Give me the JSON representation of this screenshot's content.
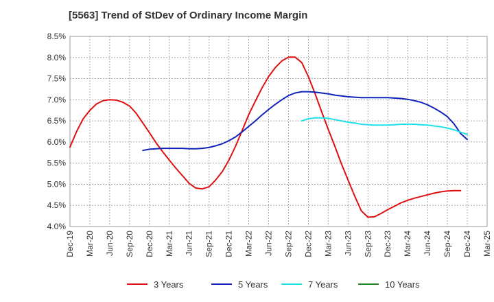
{
  "chart_data": {
    "type": "line",
    "title": "[5563]  Trend of StDev of Ordinary Income Margin",
    "xlabel": "",
    "ylabel": "",
    "x_ticks": [
      "Dec-19",
      "Mar-20",
      "Jun-20",
      "Sep-20",
      "Dec-20",
      "Mar-21",
      "Jun-21",
      "Sep-21",
      "Dec-21",
      "Mar-22",
      "Jun-22",
      "Sep-22",
      "Dec-22",
      "Mar-23",
      "Jun-23",
      "Sep-23",
      "Dec-23",
      "Mar-24",
      "Jun-24",
      "Sep-24",
      "Dec-24",
      "Mar-25"
    ],
    "y_ticks": [
      "4.0%",
      "4.5%",
      "5.0%",
      "5.5%",
      "6.0%",
      "6.5%",
      "7.0%",
      "7.5%",
      "8.0%",
      "8.5%"
    ],
    "ylim": [
      4.0,
      8.5
    ],
    "grid": true,
    "legend_position": "bottom",
    "series": [
      {
        "name": "3 Years",
        "color": "#dd1111",
        "points": [
          [
            "Dec-19",
            5.88
          ],
          [
            "Jan-20",
            6.25
          ],
          [
            "Feb-20",
            6.55
          ],
          [
            "Mar-20",
            6.75
          ],
          [
            "Apr-20",
            6.9
          ],
          [
            "May-20",
            6.98
          ],
          [
            "Jun-20",
            7.0
          ],
          [
            "Jul-20",
            6.99
          ],
          [
            "Aug-20",
            6.94
          ],
          [
            "Sep-20",
            6.85
          ],
          [
            "Oct-20",
            6.68
          ],
          [
            "Nov-20",
            6.45
          ],
          [
            "Dec-20",
            6.22
          ],
          [
            "Jan-21",
            5.98
          ],
          [
            "Feb-21",
            5.77
          ],
          [
            "Mar-21",
            5.57
          ],
          [
            "Apr-21",
            5.38
          ],
          [
            "May-21",
            5.2
          ],
          [
            "Jun-21",
            5.02
          ],
          [
            "Jul-21",
            4.91
          ],
          [
            "Aug-21",
            4.89
          ],
          [
            "Sep-21",
            4.94
          ],
          [
            "Oct-21",
            5.1
          ],
          [
            "Nov-21",
            5.3
          ],
          [
            "Dec-21",
            5.57
          ],
          [
            "Jan-22",
            5.9
          ],
          [
            "Feb-22",
            6.27
          ],
          [
            "Mar-22",
            6.65
          ],
          [
            "Apr-22",
            6.97
          ],
          [
            "May-22",
            7.28
          ],
          [
            "Jun-22",
            7.55
          ],
          [
            "Jul-22",
            7.76
          ],
          [
            "Aug-22",
            7.92
          ],
          [
            "Sep-22",
            8.01
          ],
          [
            "Oct-22",
            8.01
          ],
          [
            "Nov-22",
            7.88
          ],
          [
            "Dec-22",
            7.55
          ],
          [
            "Jan-23",
            7.15
          ],
          [
            "Feb-23",
            6.72
          ],
          [
            "Mar-23",
            6.3
          ],
          [
            "Apr-23",
            5.9
          ],
          [
            "May-23",
            5.48
          ],
          [
            "Jun-23",
            5.1
          ],
          [
            "Jul-23",
            4.72
          ],
          [
            "Aug-23",
            4.37
          ],
          [
            "Sep-23",
            4.22
          ],
          [
            "Oct-23",
            4.23
          ],
          [
            "Nov-23",
            4.31
          ],
          [
            "Dec-23",
            4.4
          ],
          [
            "Jan-24",
            4.48
          ],
          [
            "Feb-24",
            4.56
          ],
          [
            "Mar-24",
            4.62
          ],
          [
            "Apr-24",
            4.67
          ],
          [
            "May-24",
            4.71
          ],
          [
            "Jun-24",
            4.75
          ],
          [
            "Jul-24",
            4.79
          ],
          [
            "Aug-24",
            4.82
          ],
          [
            "Sep-24",
            4.84
          ],
          [
            "Oct-24",
            4.85
          ],
          [
            "Nov-24",
            4.85
          ]
        ]
      },
      {
        "name": "5 Years",
        "color": "#1122bb",
        "points": [
          [
            "Nov-20",
            5.8
          ],
          [
            "Dec-20",
            5.83
          ],
          [
            "Jan-21",
            5.84
          ],
          [
            "Feb-21",
            5.85
          ],
          [
            "Mar-21",
            5.85
          ],
          [
            "Apr-21",
            5.85
          ],
          [
            "May-21",
            5.85
          ],
          [
            "Jun-21",
            5.84
          ],
          [
            "Jul-21",
            5.84
          ],
          [
            "Aug-21",
            5.85
          ],
          [
            "Sep-21",
            5.87
          ],
          [
            "Oct-21",
            5.91
          ],
          [
            "Nov-21",
            5.96
          ],
          [
            "Dec-21",
            6.03
          ],
          [
            "Jan-22",
            6.12
          ],
          [
            "Feb-22",
            6.24
          ],
          [
            "Mar-22",
            6.37
          ],
          [
            "Apr-22",
            6.5
          ],
          [
            "May-22",
            6.64
          ],
          [
            "Jun-22",
            6.77
          ],
          [
            "Jul-22",
            6.89
          ],
          [
            "Aug-22",
            7.0
          ],
          [
            "Sep-22",
            7.1
          ],
          [
            "Oct-22",
            7.16
          ],
          [
            "Nov-22",
            7.19
          ],
          [
            "Dec-22",
            7.19
          ],
          [
            "Jan-23",
            7.18
          ],
          [
            "Feb-23",
            7.16
          ],
          [
            "Mar-23",
            7.14
          ],
          [
            "Apr-23",
            7.11
          ],
          [
            "May-23",
            7.09
          ],
          [
            "Jun-23",
            7.07
          ],
          [
            "Jul-23",
            7.06
          ],
          [
            "Aug-23",
            7.05
          ],
          [
            "Sep-23",
            7.05
          ],
          [
            "Oct-23",
            7.05
          ],
          [
            "Nov-23",
            7.05
          ],
          [
            "Dec-23",
            7.05
          ],
          [
            "Jan-24",
            7.04
          ],
          [
            "Feb-24",
            7.03
          ],
          [
            "Mar-24",
            7.01
          ],
          [
            "Apr-24",
            6.98
          ],
          [
            "May-24",
            6.94
          ],
          [
            "Jun-24",
            6.88
          ],
          [
            "Jul-24",
            6.8
          ],
          [
            "Aug-24",
            6.71
          ],
          [
            "Sep-24",
            6.6
          ],
          [
            "Oct-24",
            6.43
          ],
          [
            "Nov-24",
            6.2
          ],
          [
            "Dec-24",
            6.06
          ]
        ]
      },
      {
        "name": "7 Years",
        "color": "#22e0e8",
        "points": [
          [
            "Nov-22",
            6.5
          ],
          [
            "Dec-22",
            6.55
          ],
          [
            "Jan-23",
            6.57
          ],
          [
            "Feb-23",
            6.57
          ],
          [
            "Mar-23",
            6.56
          ],
          [
            "Apr-23",
            6.53
          ],
          [
            "May-23",
            6.5
          ],
          [
            "Jun-23",
            6.47
          ],
          [
            "Jul-23",
            6.45
          ],
          [
            "Aug-23",
            6.42
          ],
          [
            "Sep-23",
            6.41
          ],
          [
            "Oct-23",
            6.4
          ],
          [
            "Nov-23",
            6.4
          ],
          [
            "Dec-23",
            6.4
          ],
          [
            "Jan-24",
            6.41
          ],
          [
            "Feb-24",
            6.42
          ],
          [
            "Mar-24",
            6.42
          ],
          [
            "Apr-24",
            6.42
          ],
          [
            "May-24",
            6.41
          ],
          [
            "Jun-24",
            6.4
          ],
          [
            "Jul-24",
            6.38
          ],
          [
            "Aug-24",
            6.36
          ],
          [
            "Sep-24",
            6.33
          ],
          [
            "Oct-24",
            6.29
          ],
          [
            "Nov-24",
            6.23
          ],
          [
            "Dec-24",
            6.18
          ]
        ]
      },
      {
        "name": "10 Years",
        "color": "#228822",
        "points": []
      }
    ]
  }
}
